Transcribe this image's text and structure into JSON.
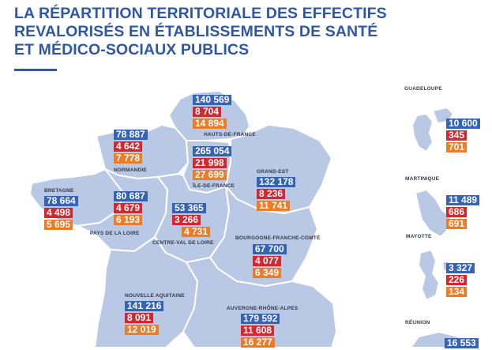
{
  "title_lines": [
    "LA RÉPARTITION TERRITORIALE DES EFFECTIFS",
    "REVALORISÉS EN ÉTABLISSEMENTS DE SANTÉ",
    "ET MÉDICO-SOCIAUX PUBLICS"
  ],
  "colors": {
    "title": "#2f57a4",
    "total": "#3563b6",
    "second": "#d4272f",
    "third": "#ec7d24",
    "region_fill": "#b9c8e4",
    "region_border": "#ffffff"
  },
  "regions": [
    {
      "id": "hauts-de-france",
      "name": "HAUTS-DE-FRANCE",
      "values": [
        "140 569",
        "8 704",
        "14 894"
      ]
    },
    {
      "id": "normandie",
      "name": "NORMANDIE",
      "values": [
        "78 887",
        "4 642",
        "7 778"
      ]
    },
    {
      "id": "ile-de-france",
      "name": "ÎLE-DE-FRANCE",
      "values": [
        "265 054",
        "21 998",
        "27 699"
      ]
    },
    {
      "id": "grand-est",
      "name": "GRAND-EST",
      "values": [
        "132 178",
        "8 236",
        "11 741"
      ]
    },
    {
      "id": "bretagne",
      "name": "BRETAGNE",
      "values": [
        "78 664",
        "4 498",
        "5 695"
      ]
    },
    {
      "id": "pays-de-la-loire",
      "name": "PAYS DE LA LOIRE",
      "values": [
        "80 687",
        "4 679",
        "6 193"
      ]
    },
    {
      "id": "centre-val-de-loire",
      "name": "CENTRE-VAL DE LOIRE",
      "values": [
        "53 365",
        "3 266",
        "4 731"
      ]
    },
    {
      "id": "bourgogne-franche-comte",
      "name": "BOURGOGNE-FRANCHE-COMTÉ",
      "values": [
        "67 700",
        "4 077",
        "6 349"
      ]
    },
    {
      "id": "nouvelle-aquitaine",
      "name": "NOUVELLE AQUITAINE",
      "values": [
        "141 216",
        "8 091",
        "12 019"
      ]
    },
    {
      "id": "auvergne-rhone-alpes",
      "name": "AUVERGNE-RHÔNE-ALPES",
      "values": [
        "179 592",
        "11 608",
        "16 277"
      ]
    }
  ],
  "overseas": [
    {
      "id": "guadeloupe",
      "name": "GUADELOUPE",
      "values": [
        "10 600",
        "345",
        "701"
      ]
    },
    {
      "id": "martinique",
      "name": "MARTINIQUE",
      "values": [
        "11 489",
        "686",
        "691"
      ]
    },
    {
      "id": "mayotte",
      "name": "MAYOTTE",
      "values": [
        "3 327",
        "226",
        "134"
      ]
    },
    {
      "id": "reunion",
      "name": "RÉUNION",
      "values": [
        "16 553"
      ]
    }
  ]
}
